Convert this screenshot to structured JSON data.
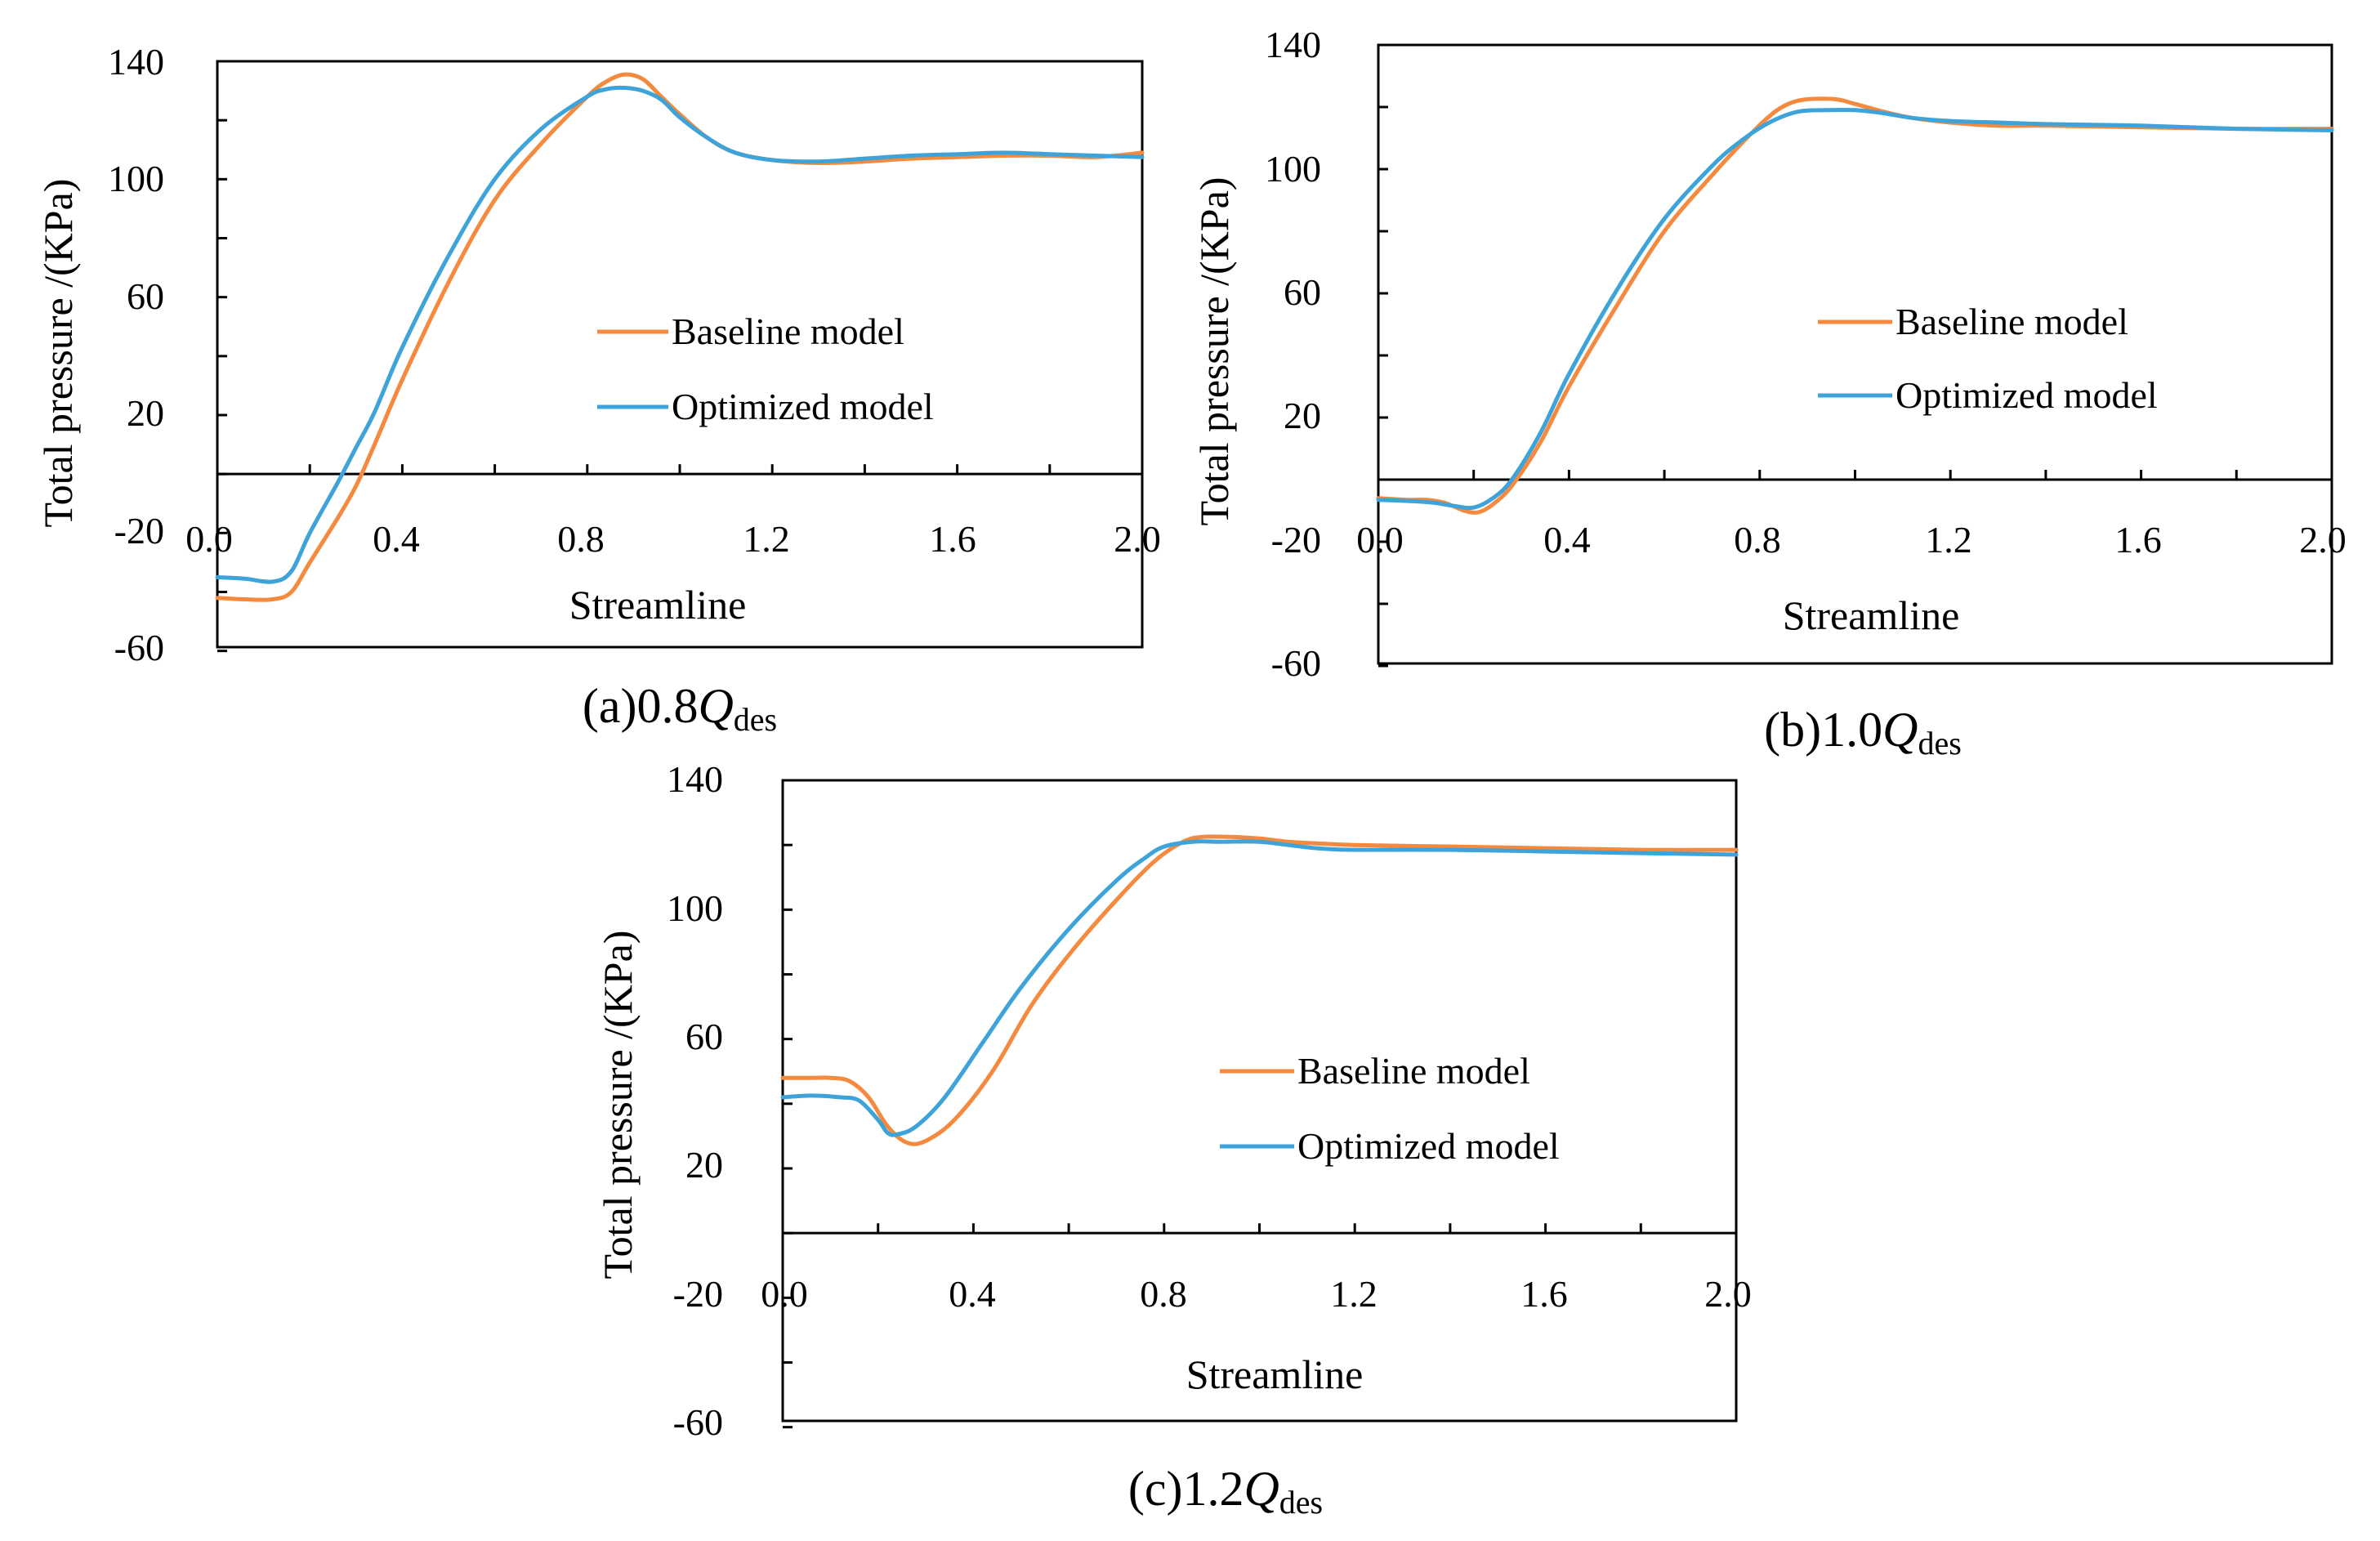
{
  "colors": {
    "baseline": "#F58A3F",
    "optimized": "#3DA3D9",
    "axis": "#000000"
  },
  "chart_data": [
    {
      "id": "a",
      "type": "line",
      "caption_prefix": "(a)",
      "caption_value": "0.8",
      "caption_symbol": "Q",
      "caption_subscript": "des",
      "xlabel": "Streamline",
      "ylabel": "Total pressure /(KPa)",
      "xlim": [
        0,
        2.0
      ],
      "ylim": [
        -60,
        140
      ],
      "xticks": [
        "0.0",
        "0.4",
        "0.8",
        "1.2",
        "1.6",
        "2.0"
      ],
      "yticks": [
        "140",
        "100",
        "60",
        "20",
        "-20",
        "-60"
      ],
      "legend_position": "center-right",
      "series": [
        {
          "name": "Baseline model",
          "color_key": "baseline",
          "points": [
            [
              0,
              -42
            ],
            [
              0.06,
              -42.5
            ],
            [
              0.12,
              -42.5
            ],
            [
              0.16,
              -40
            ],
            [
              0.2,
              -30
            ],
            [
              0.26,
              -15
            ],
            [
              0.3,
              -4
            ],
            [
              0.34,
              10
            ],
            [
              0.4,
              32
            ],
            [
              0.5,
              65
            ],
            [
              0.6,
              93
            ],
            [
              0.7,
              112
            ],
            [
              0.8,
              128
            ],
            [
              0.84,
              133
            ],
            [
              0.88,
              135.5
            ],
            [
              0.92,
              134
            ],
            [
              0.96,
              128
            ],
            [
              1.0,
              122
            ],
            [
              1.06,
              114
            ],
            [
              1.12,
              109
            ],
            [
              1.2,
              106.5
            ],
            [
              1.3,
              105.5
            ],
            [
              1.4,
              106
            ],
            [
              1.5,
              107
            ],
            [
              1.6,
              107.5
            ],
            [
              1.7,
              108
            ],
            [
              1.8,
              108
            ],
            [
              1.9,
              107.5
            ],
            [
              2.0,
              109
            ]
          ]
        },
        {
          "name": "Optimized model",
          "color_key": "optimized",
          "points": [
            [
              0,
              -35
            ],
            [
              0.06,
              -35.5
            ],
            [
              0.12,
              -36.5
            ],
            [
              0.16,
              -33
            ],
            [
              0.2,
              -20
            ],
            [
              0.26,
              -3
            ],
            [
              0.3,
              9
            ],
            [
              0.34,
              21
            ],
            [
              0.4,
              43
            ],
            [
              0.5,
              74
            ],
            [
              0.6,
              100
            ],
            [
              0.7,
              117
            ],
            [
              0.8,
              128
            ],
            [
              0.84,
              130.5
            ],
            [
              0.88,
              131
            ],
            [
              0.92,
              130
            ],
            [
              0.96,
              127
            ],
            [
              1.0,
              121
            ],
            [
              1.06,
              114
            ],
            [
              1.12,
              109
            ],
            [
              1.2,
              106.5
            ],
            [
              1.3,
              106
            ],
            [
              1.4,
              107
            ],
            [
              1.5,
              108
            ],
            [
              1.6,
              108.5
            ],
            [
              1.7,
              109
            ],
            [
              1.8,
              108.5
            ],
            [
              1.9,
              108
            ],
            [
              2.0,
              107.5
            ]
          ]
        }
      ]
    },
    {
      "id": "b",
      "type": "line",
      "caption_prefix": "(b)",
      "caption_value": "1.0",
      "caption_symbol": "Q",
      "caption_subscript": "des",
      "xlabel": "Streamline",
      "ylabel": "Total pressure /(KPa)",
      "xlim": [
        0,
        2.0
      ],
      "ylim": [
        -60,
        140
      ],
      "xticks": [
        "0.0",
        "0.4",
        "0.8",
        "1.2",
        "1.6",
        "2.0"
      ],
      "yticks": [
        "140",
        "100",
        "60",
        "20",
        "-20",
        "-60"
      ],
      "legend_position": "center-right",
      "series": [
        {
          "name": "Baseline model",
          "color_key": "baseline",
          "points": [
            [
              0,
              -6
            ],
            [
              0.06,
              -6.5
            ],
            [
              0.1,
              -6.5
            ],
            [
              0.14,
              -7.5
            ],
            [
              0.18,
              -10
            ],
            [
              0.21,
              -10.5
            ],
            [
              0.24,
              -8
            ],
            [
              0.28,
              -2
            ],
            [
              0.34,
              12
            ],
            [
              0.4,
              30
            ],
            [
              0.5,
              56
            ],
            [
              0.6,
              80
            ],
            [
              0.7,
              98
            ],
            [
              0.76,
              108
            ],
            [
              0.82,
              117
            ],
            [
              0.86,
              121
            ],
            [
              0.9,
              122.5
            ],
            [
              0.96,
              122.5
            ],
            [
              1.0,
              121
            ],
            [
              1.06,
              118.5
            ],
            [
              1.12,
              116.5
            ],
            [
              1.2,
              115
            ],
            [
              1.3,
              114
            ],
            [
              1.4,
              114
            ],
            [
              1.6,
              113.5
            ],
            [
              1.8,
              113
            ],
            [
              2.0,
              113
            ]
          ]
        },
        {
          "name": "Optimized model",
          "color_key": "optimized",
          "points": [
            [
              0,
              -6.5
            ],
            [
              0.08,
              -7
            ],
            [
              0.12,
              -7.5
            ],
            [
              0.16,
              -8.5
            ],
            [
              0.2,
              -9
            ],
            [
              0.24,
              -6
            ],
            [
              0.28,
              0
            ],
            [
              0.34,
              15
            ],
            [
              0.4,
              34
            ],
            [
              0.5,
              61
            ],
            [
              0.6,
              84
            ],
            [
              0.7,
              101
            ],
            [
              0.76,
              109
            ],
            [
              0.82,
              115
            ],
            [
              0.88,
              118.5
            ],
            [
              0.94,
              119
            ],
            [
              1.0,
              119
            ],
            [
              1.06,
              118
            ],
            [
              1.12,
              116.5
            ],
            [
              1.2,
              115.5
            ],
            [
              1.3,
              115
            ],
            [
              1.4,
              114.5
            ],
            [
              1.6,
              114
            ],
            [
              1.8,
              113
            ],
            [
              2.0,
              112.5
            ]
          ]
        }
      ]
    },
    {
      "id": "c",
      "type": "line",
      "caption_prefix": "(c)",
      "caption_value": "1.2",
      "caption_symbol": "Q",
      "caption_subscript": "des",
      "xlabel": "Streamline",
      "ylabel": "Total pressure /(KPa)",
      "xlim": [
        0,
        2.0
      ],
      "ylim": [
        -60,
        140
      ],
      "xticks": [
        "0.0",
        "0.4",
        "0.8",
        "1.2",
        "1.6",
        "2.0"
      ],
      "yticks": [
        "140",
        "100",
        "60",
        "20",
        "-20",
        "-60"
      ],
      "legend_position": "center-right",
      "series": [
        {
          "name": "Baseline model",
          "color_key": "baseline",
          "points": [
            [
              0,
              48
            ],
            [
              0.06,
              48
            ],
            [
              0.1,
              48
            ],
            [
              0.14,
              47
            ],
            [
              0.18,
              42
            ],
            [
              0.22,
              33
            ],
            [
              0.26,
              28
            ],
            [
              0.3,
              28.5
            ],
            [
              0.36,
              35
            ],
            [
              0.44,
              50
            ],
            [
              0.52,
              70
            ],
            [
              0.6,
              86
            ],
            [
              0.7,
              103
            ],
            [
              0.78,
              115
            ],
            [
              0.84,
              121
            ],
            [
              0.88,
              122.5
            ],
            [
              0.94,
              122.5
            ],
            [
              1.0,
              122
            ],
            [
              1.06,
              121
            ],
            [
              1.12,
              120.5
            ],
            [
              1.2,
              120
            ],
            [
              1.4,
              119.5
            ],
            [
              1.6,
              119
            ],
            [
              1.8,
              118.5
            ],
            [
              2.0,
              118.5
            ]
          ]
        },
        {
          "name": "Optimized model",
          "color_key": "optimized",
          "points": [
            [
              0,
              42
            ],
            [
              0.06,
              42.5
            ],
            [
              0.12,
              42
            ],
            [
              0.16,
              41
            ],
            [
              0.2,
              35
            ],
            [
              0.22,
              31
            ],
            [
              0.24,
              30.5
            ],
            [
              0.28,
              33
            ],
            [
              0.34,
              42
            ],
            [
              0.42,
              59
            ],
            [
              0.5,
              76
            ],
            [
              0.6,
              94
            ],
            [
              0.7,
              109
            ],
            [
              0.76,
              116
            ],
            [
              0.8,
              119.5
            ],
            [
              0.86,
              121
            ],
            [
              0.92,
              121
            ],
            [
              1.0,
              121
            ],
            [
              1.06,
              120
            ],
            [
              1.12,
              119
            ],
            [
              1.2,
              118.5
            ],
            [
              1.4,
              118.5
            ],
            [
              1.6,
              118
            ],
            [
              1.8,
              117.5
            ],
            [
              2.0,
              117
            ]
          ]
        }
      ]
    }
  ]
}
